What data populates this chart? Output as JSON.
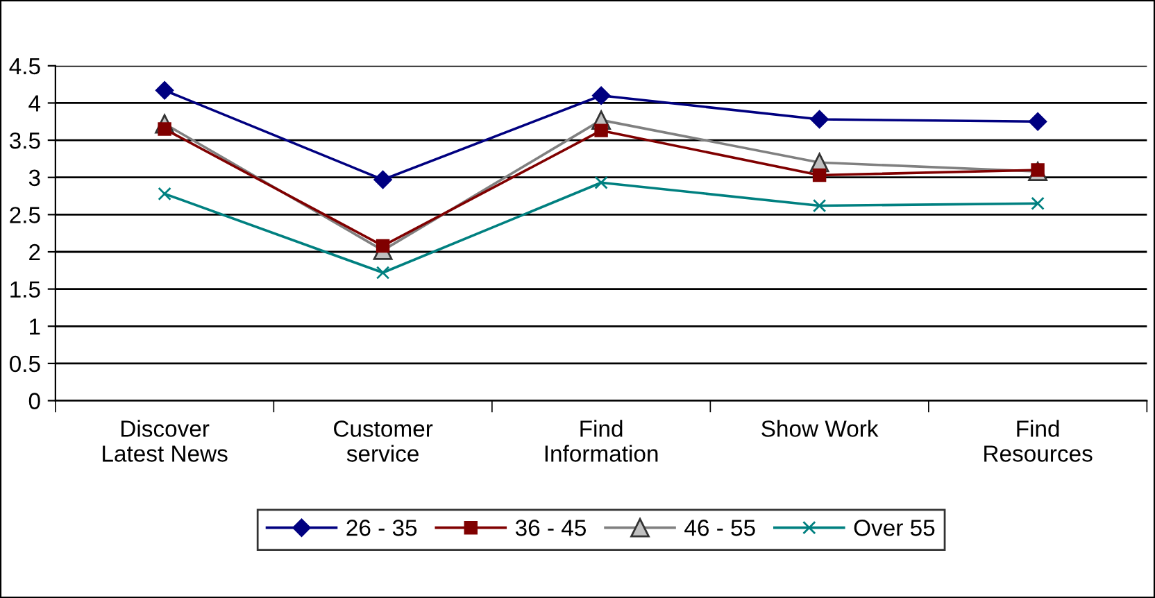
{
  "chart_data": {
    "type": "line",
    "categories": [
      "Discover\nLatest News",
      "Customer\nservice",
      "Find\nInformation",
      "Show Work",
      "Find\nResources"
    ],
    "series": [
      {
        "name": "26 - 35",
        "color": "#000080",
        "marker": "diamond",
        "values": [
          4.17,
          2.97,
          4.1,
          3.78,
          3.75
        ]
      },
      {
        "name": "36 - 45",
        "color": "#800000",
        "marker": "square",
        "values": [
          3.65,
          2.08,
          3.63,
          3.03,
          3.1
        ]
      },
      {
        "name": "46 - 55",
        "color": "#808080",
        "marker": "triangle",
        "values": [
          3.72,
          2.02,
          3.77,
          3.2,
          3.08
        ]
      },
      {
        "name": "Over 55",
        "color": "#008080",
        "marker": "cross",
        "values": [
          2.78,
          1.72,
          2.93,
          2.62,
          2.65
        ]
      }
    ],
    "ylim": [
      0,
      4.5
    ],
    "yticks": [
      0,
      0.5,
      1,
      1.5,
      2,
      2.5,
      3,
      3.5,
      4,
      4.5
    ],
    "grid": "y",
    "legend": "bottom",
    "line_style": "solid"
  }
}
